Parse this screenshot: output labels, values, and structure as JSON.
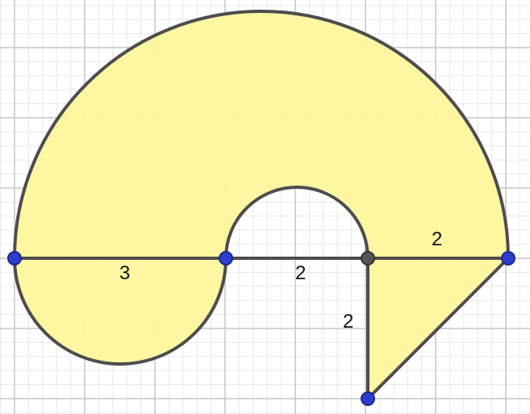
{
  "figure": {
    "labels": [
      {
        "id": "left-diameter",
        "text": "3"
      },
      {
        "id": "middle-segment",
        "text": "2"
      },
      {
        "id": "right-segment",
        "text": "2"
      },
      {
        "id": "vertical-segment",
        "text": "2"
      }
    ],
    "colors": {
      "fill": "#fff59d",
      "outline": "#4d4d4d",
      "point": "#2d3ecf",
      "center_point": "#555555",
      "grid_major": "#c6c6c6",
      "grid_minor": "#e8e8e8"
    }
  }
}
